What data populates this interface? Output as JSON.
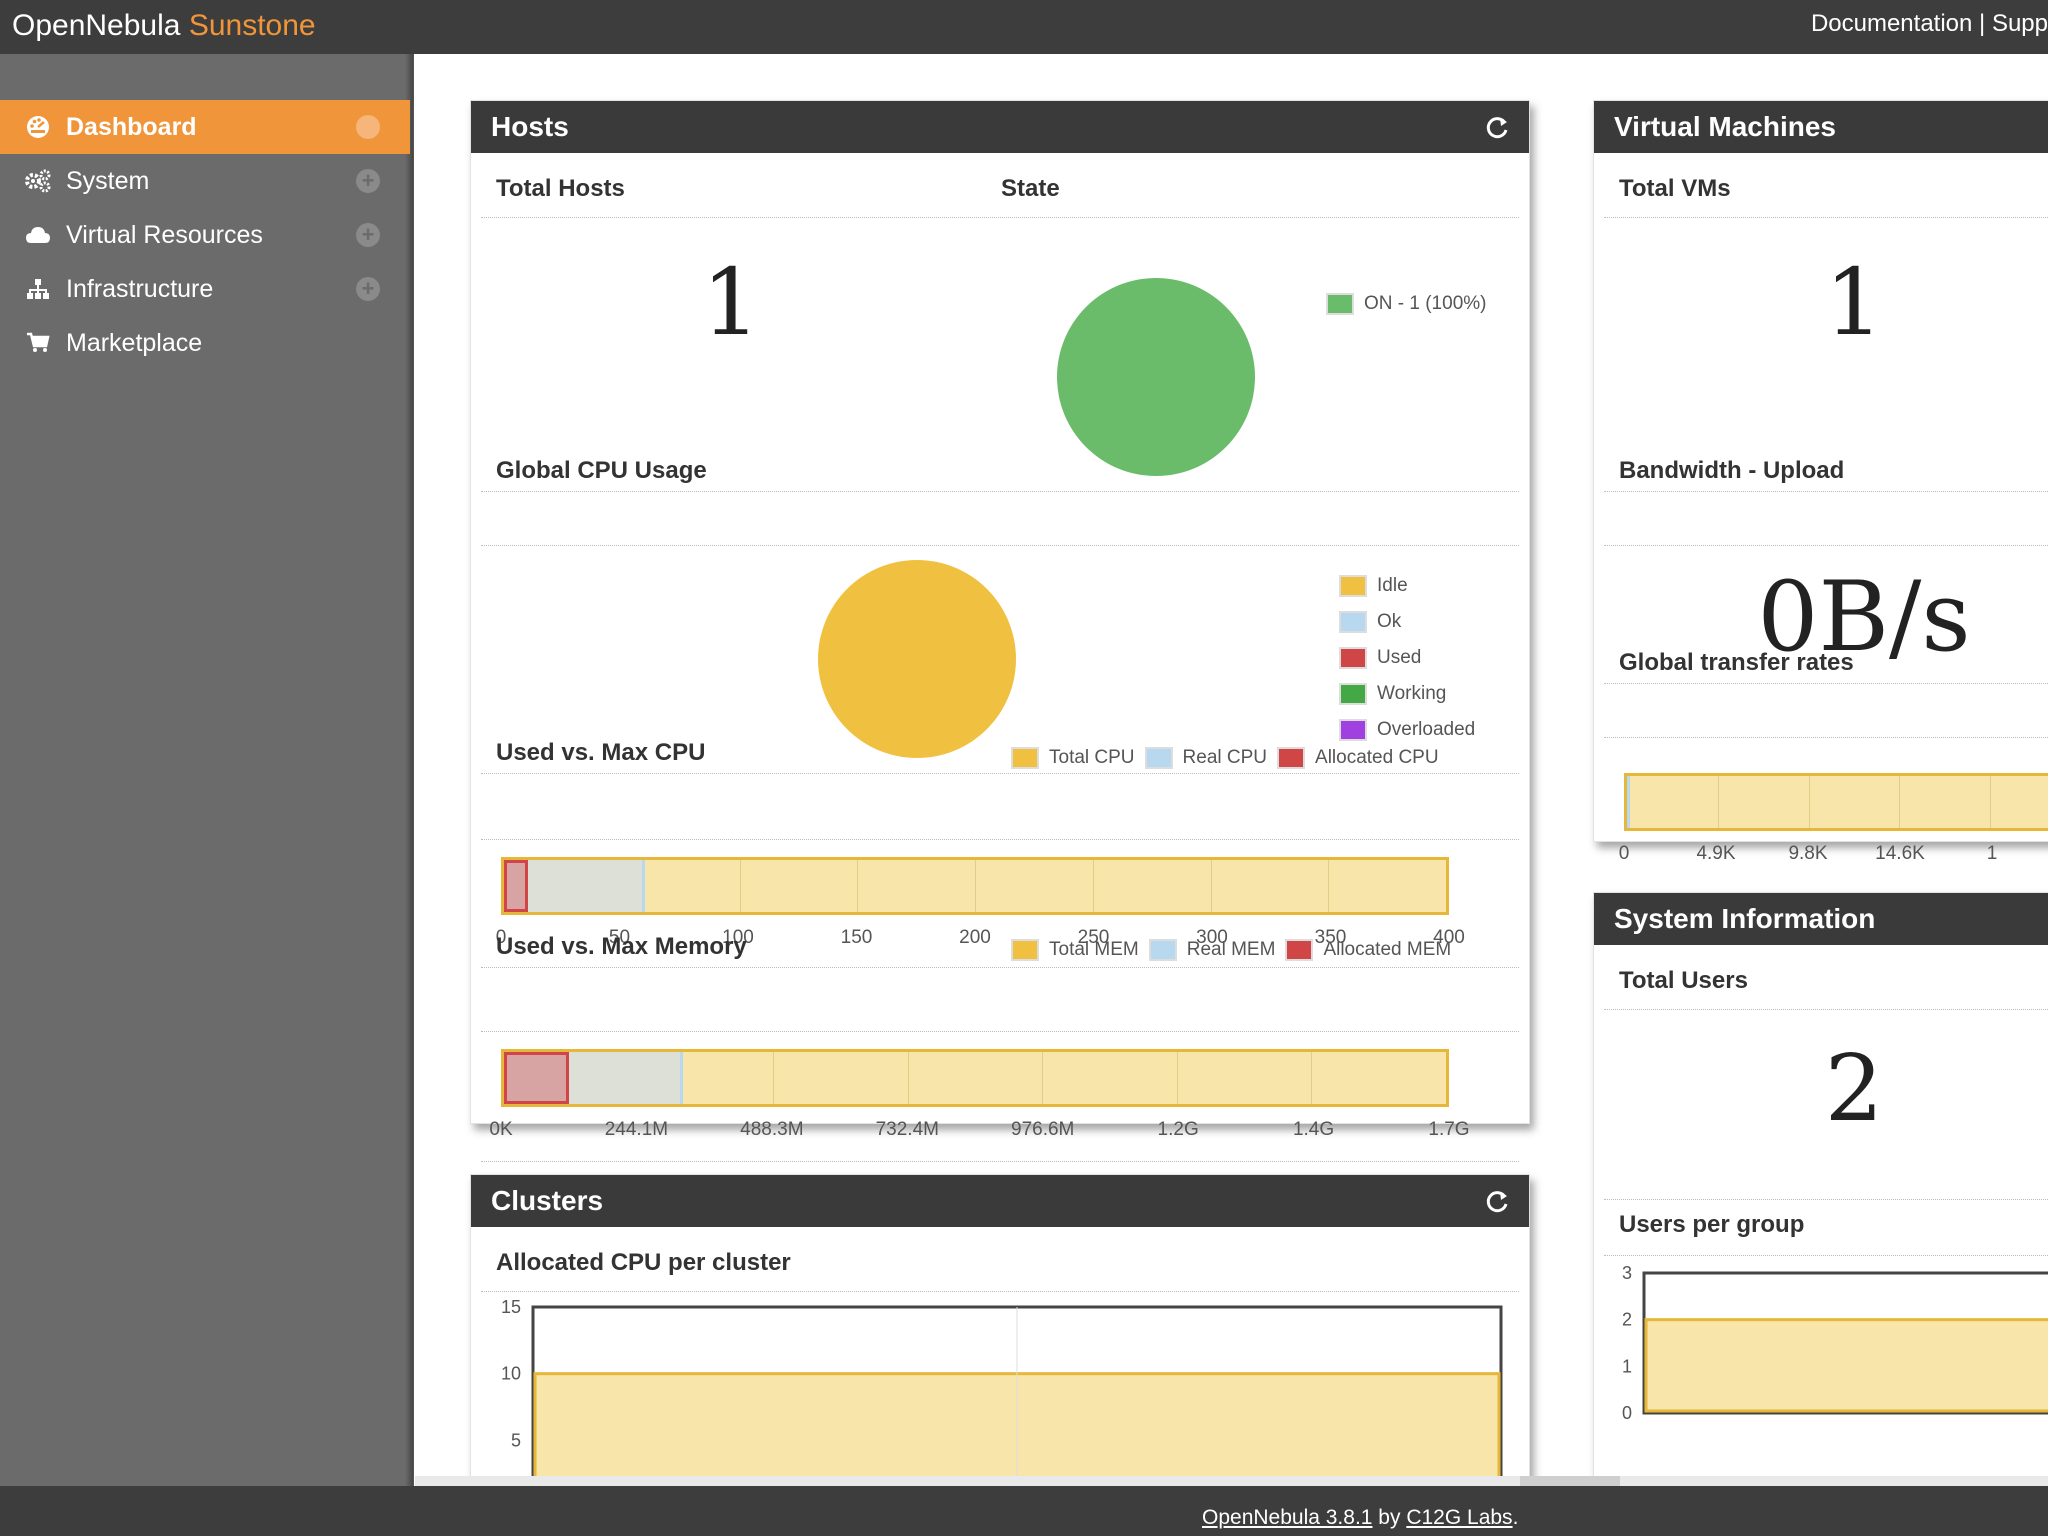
{
  "header": {
    "logo_brand": "OpenNebula",
    "logo_product": "Sunstone",
    "links": [
      "Documentation |",
      "Supp"
    ]
  },
  "sidebar": {
    "items": [
      {
        "label": "Dashboard",
        "icon": "dashboard-icon",
        "active": true
      },
      {
        "label": "System",
        "icon": "cogs-icon"
      },
      {
        "label": "Virtual Resources",
        "icon": "cloud-icon"
      },
      {
        "label": "Infrastructure",
        "icon": "sitemap-icon"
      },
      {
        "label": "Marketplace",
        "icon": "shopping-cart-icon"
      }
    ]
  },
  "hosts": {
    "title": "Hosts",
    "total_title": "Total Hosts",
    "total_value": "1",
    "state_title": "State",
    "state_legend": "ON - 1 (100%)",
    "cpu_usage_title": "Global CPU Usage",
    "cpu_usage_legend": [
      "Idle",
      "Ok",
      "Used",
      "Working",
      "Overloaded"
    ],
    "cpu_title": "Used vs. Max CPU",
    "cpu_legend": [
      "Total CPU",
      "Real CPU",
      "Allocated CPU"
    ],
    "cpu_ticks": [
      "0",
      "50",
      "100",
      "150",
      "200",
      "250",
      "300",
      "350",
      "400"
    ],
    "mem_title": "Used vs. Max Memory",
    "mem_legend": [
      "Total MEM",
      "Real MEM",
      "Allocated MEM"
    ],
    "mem_ticks": [
      "0K",
      "244.1M",
      "488.3M",
      "732.4M",
      "976.6M",
      "1.2G",
      "1.4G",
      "1.7G"
    ]
  },
  "clusters": {
    "title": "Clusters",
    "cpu_title": "Allocated CPU per cluster",
    "y_ticks": [
      "15",
      "10",
      "5",
      "0"
    ]
  },
  "vms": {
    "title": "Virtual Machines",
    "total_title": "Total VMs",
    "total_value": "1",
    "bandwidth_title": "Bandwidth - Upload",
    "bandwidth_value": "0B/s",
    "transfer_title": "Global transfer rates",
    "transfer_ticks": [
      "0",
      "4.9K",
      "9.8K",
      "14.6K",
      "1"
    ]
  },
  "sysinfo": {
    "title": "System Information",
    "users_title": "Total Users",
    "users_value": "2",
    "group_title": "Users per group",
    "y_ticks": [
      "3",
      "2",
      "1",
      "0"
    ]
  },
  "footer": {
    "version_link": "OpenNebula 3.8.1",
    "by": " by ",
    "company_link": "C12G Labs",
    "end": "."
  },
  "colors": {
    "accent": "#f0953a",
    "pie_on": "#6abc6a",
    "pie_idle": "#f0c040",
    "total": "#f0c040",
    "real": "#b8d8f0",
    "allocated": "#d04545",
    "working": "#44a844",
    "overloaded": "#a040e0"
  },
  "chart_data": [
    {
      "type": "pie",
      "title": "State",
      "categories": [
        "ON - 1 (100%)"
      ],
      "values": [
        1
      ]
    },
    {
      "type": "pie",
      "title": "Global CPU Usage",
      "categories": [
        "Idle",
        "Ok",
        "Used",
        "Working",
        "Overloaded"
      ],
      "values": [
        1,
        0,
        0,
        0,
        0
      ]
    },
    {
      "type": "bar",
      "title": "Used vs. Max CPU",
      "orientation": "horizontal",
      "series": [
        {
          "name": "Total CPU",
          "values": [
            400
          ]
        },
        {
          "name": "Real CPU",
          "values": [
            60
          ]
        },
        {
          "name": "Allocated CPU",
          "values": [
            10
          ]
        }
      ],
      "xlim": [
        0,
        400
      ]
    },
    {
      "type": "bar",
      "title": "Used vs. Max Memory",
      "orientation": "horizontal",
      "series": [
        {
          "name": "Total MEM",
          "values": [
            1.89
          ]
        },
        {
          "name": "Real MEM",
          "values": [
            0.36
          ]
        },
        {
          "name": "Allocated MEM",
          "values": [
            0.13
          ]
        }
      ],
      "xlim": [
        0,
        1.89
      ]
    },
    {
      "type": "area",
      "title": "Allocated CPU per cluster",
      "x": [
        0,
        1,
        2
      ],
      "values": [
        10,
        10,
        10
      ],
      "ylim": [
        0,
        15
      ]
    },
    {
      "type": "area",
      "title": "Users per group",
      "x": [
        0,
        1
      ],
      "values": [
        2,
        2
      ],
      "ylim": [
        0,
        3
      ]
    }
  ]
}
